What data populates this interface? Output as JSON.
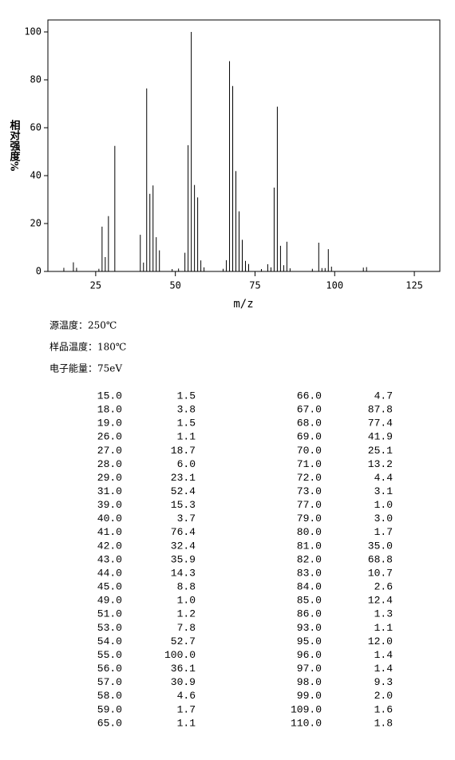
{
  "chart_data": {
    "type": "stick",
    "y_label": "相对强度%",
    "x_label": "m/z",
    "xlim": [
      10,
      133
    ],
    "ylim": [
      0,
      105
    ],
    "xticks": [
      25,
      50,
      75,
      100,
      125
    ],
    "yticks": [
      0,
      20,
      40,
      60,
      80,
      100
    ],
    "color": "#000000",
    "x": [
      15,
      18,
      19,
      26,
      27,
      28,
      29,
      31,
      39,
      40,
      41,
      42,
      43,
      44,
      45,
      49,
      51,
      53,
      54,
      55,
      56,
      57,
      58,
      59,
      65,
      66,
      67,
      68,
      69,
      70,
      71,
      72,
      73,
      77,
      79,
      80,
      81,
      82,
      83,
      84,
      85,
      86,
      93,
      95,
      96,
      97,
      98,
      99,
      109,
      110
    ],
    "x_labels": [
      "15.0",
      "18.0",
      "19.0",
      "26.0",
      "27.0",
      "28.0",
      "29.0",
      "31.0",
      "39.0",
      "40.0",
      "41.0",
      "42.0",
      "43.0",
      "44.0",
      "45.0",
      "49.0",
      "51.0",
      "53.0",
      "54.0",
      "55.0",
      "56.0",
      "57.0",
      "58.0",
      "59.0",
      "65.0",
      "66.0",
      "67.0",
      "68.0",
      "69.0",
      "70.0",
      "71.0",
      "72.0",
      "73.0",
      "77.0",
      "79.0",
      "80.0",
      "81.0",
      "82.0",
      "83.0",
      "84.0",
      "85.0",
      "86.0",
      "93.0",
      "95.0",
      "96.0",
      "97.0",
      "98.0",
      "99.0",
      "109.0",
      "110.0"
    ],
    "values": [
      1.5,
      3.8,
      1.5,
      1.1,
      18.7,
      6.0,
      23.1,
      52.4,
      15.3,
      3.7,
      76.4,
      32.4,
      35.9,
      14.3,
      8.8,
      1.0,
      1.2,
      7.8,
      52.7,
      100,
      36.1,
      30.9,
      4.6,
      1.7,
      1.1,
      4.7,
      87.8,
      77.4,
      41.9,
      25.1,
      13.2,
      4.4,
      3.1,
      1.0,
      3.0,
      1.7,
      35.0,
      68.8,
      10.7,
      2.6,
      12.4,
      1.3,
      1.1,
      12.0,
      1.4,
      1.4,
      9.3,
      2.0,
      1.6,
      1.8
    ],
    "value_labels": [
      "1.5",
      "3.8",
      "1.5",
      "1.1",
      "18.7",
      "6.0",
      "23.1",
      "52.4",
      "15.3",
      "3.7",
      "76.4",
      "32.4",
      "35.9",
      "14.3",
      "8.8",
      "1.0",
      "1.2",
      "7.8",
      "52.7",
      "100.0",
      "36.1",
      "30.9",
      "4.6",
      "1.7",
      "1.1",
      "4.7",
      "87.8",
      "77.4",
      "41.9",
      "25.1",
      "13.2",
      "4.4",
      "3.1",
      "1.0",
      "3.0",
      "1.7",
      "35.0",
      "68.8",
      "10.7",
      "2.6",
      "12.4",
      "1.3",
      "1.1",
      "12.0",
      "1.4",
      "1.4",
      "9.3",
      "2.0",
      "1.6",
      "1.8"
    ]
  },
  "conditions": [
    "源温度：250℃",
    "样品温度：180℃",
    "电子能量：75eV"
  ]
}
